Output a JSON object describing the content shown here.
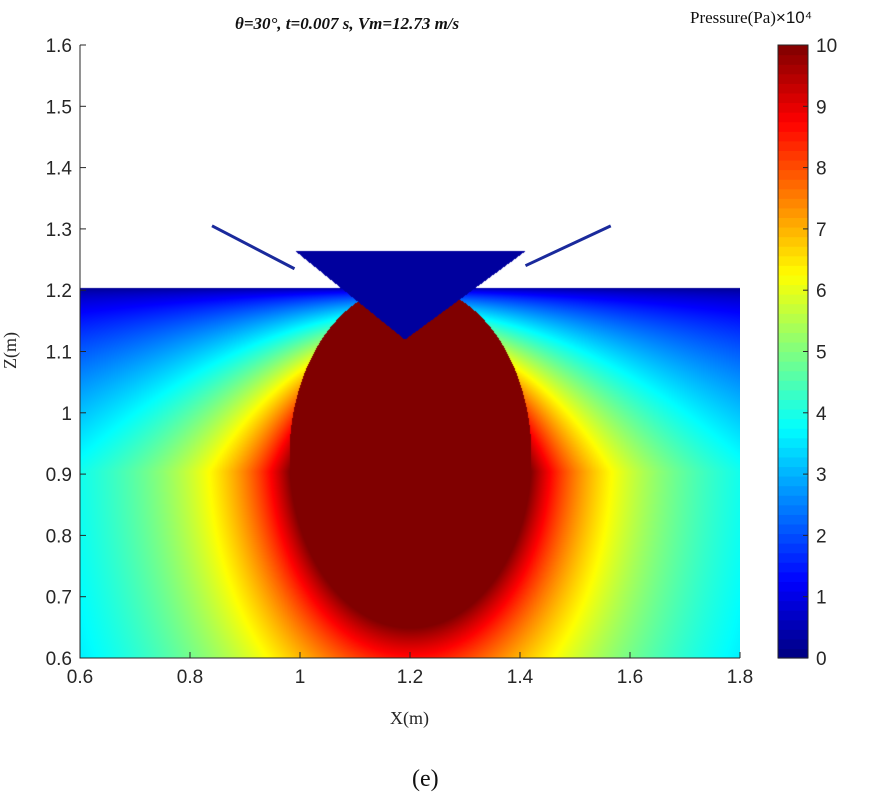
{
  "chart_data": {
    "type": "heatmap",
    "title": "θ=30°,  t=0.007 s,  Vm=12.73 m/s",
    "xlabel": "X(m)",
    "ylabel": "Z(m)",
    "xlim": [
      0.6,
      1.8
    ],
    "ylim": [
      0.6,
      1.6
    ],
    "xticks": [
      "0.6",
      "0.8",
      "1",
      "1.2",
      "1.4",
      "1.6",
      "1.8"
    ],
    "yticks": [
      "0.6",
      "0.7",
      "0.8",
      "0.9",
      "1",
      "1.1",
      "1.2",
      "1.3",
      "1.4",
      "1.5",
      "1.6"
    ],
    "colorbar": {
      "label": "Pressure(Pa)",
      "multiplier": "×10⁴",
      "range": [
        0,
        10
      ],
      "ticks": [
        "0",
        "1",
        "2",
        "3",
        "4",
        "5",
        "6",
        "7",
        "8",
        "9",
        "10"
      ],
      "colormap": "jet"
    },
    "features": {
      "free_surface_z": 1.205,
      "wedge_apex": [
        1.19,
        1.12
      ],
      "wedge_top_z": 1.265,
      "wedge_top_x": [
        0.99,
        1.41
      ],
      "high_pressure_center": [
        1.2,
        0.93
      ],
      "max_pressure": 10
    }
  },
  "caption": "(e)"
}
